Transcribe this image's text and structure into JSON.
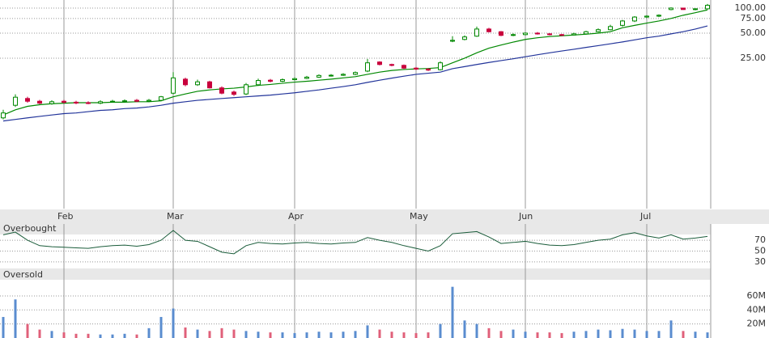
{
  "chart_data": [
    {
      "type": "candlestick",
      "categories": [
        null,
        null,
        null,
        null,
        null,
        "Feb",
        null,
        null,
        null,
        null,
        null,
        null,
        null,
        null,
        "Mar",
        null,
        null,
        null,
        null,
        null,
        null,
        null,
        null,
        null,
        "Apr",
        null,
        null,
        null,
        null,
        null,
        null,
        null,
        null,
        null,
        "May",
        null,
        null,
        null,
        null,
        null,
        null,
        null,
        null,
        "Jun",
        null,
        null,
        null,
        null,
        null,
        null,
        null,
        null,
        null,
        "Jul",
        null,
        null,
        null,
        null,
        null
      ],
      "open": [
        4.8,
        6.8,
        8.2,
        7.6,
        7.1,
        7.6,
        7.4,
        7.3,
        7.2,
        7.5,
        7.6,
        7.8,
        7.6,
        7.8,
        9.5,
        14.0,
        12.0,
        13.0,
        11.0,
        9.8,
        9.3,
        12.0,
        13.6,
        13.2,
        13.8,
        14.3,
        14.8,
        15.4,
        15.6,
        16.0,
        17.5,
        22.5,
        21.0,
        20.5,
        19.0,
        18.5,
        18.2,
        40.0,
        42.0,
        46.0,
        56.0,
        52.0,
        47.0,
        48.0,
        50.0,
        49.0,
        48.0,
        47.5,
        49.0,
        52.0,
        55.0,
        62.0,
        70.0,
        78.0,
        80.0,
        96.0,
        100.0,
        96.0,
        98.0
      ],
      "high": [
        6.0,
        9.2,
        8.6,
        7.9,
        7.8,
        7.9,
        7.7,
        7.6,
        7.8,
        7.9,
        8.0,
        8.1,
        8.1,
        8.8,
        17.0,
        14.6,
        13.8,
        13.4,
        11.5,
        10.2,
        12.6,
        14.2,
        14.1,
        14.3,
        14.7,
        15.3,
        16.0,
        16.1,
        16.5,
        17.3,
        24.5,
        23.0,
        21.5,
        21.0,
        19.6,
        19.0,
        23.0,
        46.0,
        47.0,
        60.0,
        58.0,
        53.0,
        49.5,
        51.0,
        51.5,
        50.0,
        49.0,
        50.5,
        53.5,
        57.0,
        63.0,
        72.0,
        80.0,
        82.0,
        84.0,
        102.0,
        101.0,
        99.0,
        112.0
      ],
      "low": [
        4.6,
        6.5,
        7.3,
        7.0,
        6.9,
        7.1,
        7.0,
        7.0,
        7.0,
        7.3,
        7.4,
        7.4,
        7.4,
        7.6,
        9.2,
        11.5,
        11.6,
        10.8,
        9.2,
        8.8,
        9.0,
        11.6,
        12.8,
        12.9,
        13.5,
        14.0,
        14.5,
        15.0,
        15.3,
        15.6,
        17.0,
        20.5,
        20.0,
        18.6,
        18.0,
        17.5,
        17.8,
        39.0,
        41.0,
        45.0,
        51.0,
        46.0,
        46.0,
        47.0,
        48.0,
        47.0,
        46.5,
        46.8,
        48.0,
        51.0,
        54.0,
        60.0,
        68.0,
        76.0,
        78.0,
        94.0,
        95.0,
        94.0,
        96.0
      ],
      "close": [
        5.5,
        8.5,
        7.6,
        7.2,
        7.5,
        7.4,
        7.3,
        7.2,
        7.5,
        7.6,
        7.7,
        7.6,
        7.8,
        8.6,
        14.5,
        12.0,
        13.0,
        11.0,
        9.5,
        9.2,
        12.0,
        13.5,
        13.2,
        13.8,
        14.2,
        14.8,
        15.5,
        15.6,
        16.0,
        16.8,
        22.0,
        21.0,
        20.5,
        19.0,
        18.5,
        18.0,
        22.0,
        41.0,
        45.0,
        56.0,
        52.0,
        47.0,
        48.0,
        50.0,
        49.0,
        48.0,
        47.5,
        49.0,
        52.0,
        55.0,
        60.0,
        70.0,
        78.0,
        80.0,
        82.0,
        100.0,
        96.0,
        98.0,
        108.0
      ],
      "up_color": "#008800",
      "down_color": "#c8003c",
      "series": [
        {
          "color": "#008800",
          "values": [
            5.2,
            6.0,
            6.6,
            6.9,
            7.1,
            7.2,
            7.3,
            7.3,
            7.3,
            7.4,
            7.4,
            7.5,
            7.5,
            7.7,
            8.6,
            9.3,
            10.0,
            10.4,
            10.7,
            10.9,
            11.3,
            11.8,
            12.1,
            12.5,
            12.9,
            13.2,
            13.6,
            14.0,
            14.5,
            15.0,
            16.0,
            17.0,
            17.8,
            18.3,
            18.6,
            18.8,
            19.3,
            22.0,
            25.0,
            29.0,
            33.0,
            36.0,
            39.0,
            42.0,
            44.0,
            45.5,
            46.5,
            47.5,
            48.5,
            50.0,
            52.0,
            58.0,
            62.0,
            66.0,
            70.0,
            75.0,
            82.0,
            88.0,
            95.0
          ]
        },
        {
          "color": "#22349a",
          "values": [
            4.4,
            4.6,
            4.8,
            5.0,
            5.2,
            5.4,
            5.5,
            5.7,
            5.9,
            6.0,
            6.2,
            6.3,
            6.5,
            6.8,
            7.2,
            7.5,
            7.8,
            8.0,
            8.2,
            8.4,
            8.6,
            8.8,
            9.0,
            9.3,
            9.6,
            10.0,
            10.4,
            10.9,
            11.4,
            12.0,
            12.8,
            13.6,
            14.4,
            15.2,
            16.0,
            16.5,
            17.0,
            18.7,
            19.8,
            21.0,
            22.2,
            23.4,
            24.6,
            26.0,
            27.5,
            29.0,
            30.5,
            32.0,
            33.7,
            35.4,
            37.2,
            39.2,
            41.5,
            44.0,
            46.0,
            49.0,
            52.0,
            56.0,
            61.0
          ]
        }
      ],
      "log_scale": true,
      "ylim": [
        0.39,
        125
      ],
      "yticks": [
        {
          "value": 25,
          "label": "25.00"
        },
        {
          "value": 50,
          "label": "50.00"
        },
        {
          "value": 75,
          "label": "75.00"
        },
        {
          "value": 100,
          "label": "100.00"
        }
      ],
      "grid": true
    },
    {
      "type": "line",
      "color": "#1a5c3a",
      "annotations": [
        "Overbought",
        "Oversold"
      ],
      "values": [
        80,
        85,
        70,
        60,
        58,
        57,
        56,
        55,
        58,
        60,
        61,
        59,
        62,
        70,
        88,
        70,
        68,
        58,
        48,
        45,
        60,
        66,
        64,
        63,
        65,
        66,
        64,
        63,
        65,
        66,
        75,
        70,
        66,
        60,
        55,
        50,
        60,
        82,
        84,
        86,
        76,
        64,
        66,
        68,
        64,
        61,
        60,
        62,
        66,
        70,
        72,
        80,
        84,
        78,
        74,
        80,
        72,
        74,
        77
      ],
      "ylim": [
        0,
        100
      ],
      "yticks": [
        30,
        50,
        70
      ],
      "grid": true
    },
    {
      "type": "bar",
      "values": [
        30,
        55,
        20,
        12,
        10,
        8,
        6,
        6,
        5,
        5,
        6,
        5,
        14,
        30,
        42,
        15,
        12,
        10,
        14,
        12,
        10,
        9,
        8,
        8,
        7,
        8,
        9,
        8,
        9,
        10,
        18,
        12,
        9,
        8,
        7,
        8,
        20,
        73,
        25,
        20,
        14,
        10,
        12,
        9,
        8,
        8,
        7,
        9,
        10,
        12,
        11,
        13,
        12,
        10,
        10,
        25,
        10,
        9,
        8
      ],
      "up_color": "#5a8ccf",
      "down_color": "#e0607a",
      "ylim": [
        0,
        83
      ],
      "yticks": [
        {
          "value": 20,
          "label": "20M"
        },
        {
          "value": 40,
          "label": "40M"
        },
        {
          "value": 60,
          "label": "60M"
        }
      ],
      "grid": true
    }
  ]
}
